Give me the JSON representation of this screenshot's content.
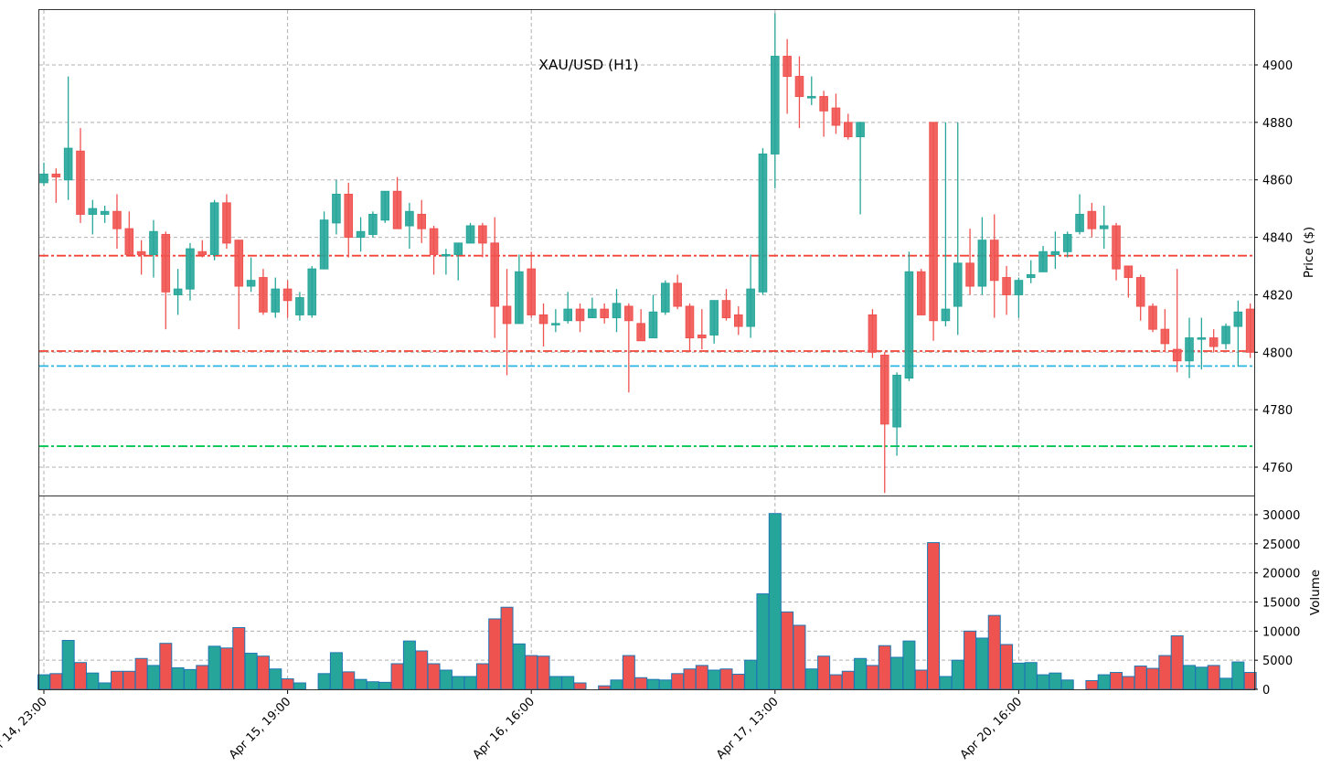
{
  "chart_data": [
    {
      "type": "candlestick",
      "title": "XAU/USD (H1)",
      "ylabel": "Price ($)",
      "ylim": [
        4749,
        4918
      ],
      "yticks": [
        4760,
        4780,
        4800,
        4820,
        4840,
        4860,
        4880,
        4900
      ],
      "grid": true,
      "xtick_labels": [
        "Apr 14, 23:00",
        "Apr 15, 19:00",
        "Apr 16, 16:00",
        "Apr 17, 13:00",
        "Apr 20, 16:00"
      ],
      "xtick_indices": [
        0,
        20,
        40,
        60,
        80
      ],
      "colors": {
        "up": "#26a69a",
        "down": "#ef5350"
      },
      "horizontal_lines": [
        {
          "price": 4833.6,
          "color": "#f44336",
          "style": "dashdot"
        },
        {
          "price": 4800.4,
          "color": "#f44336",
          "style": "dashdot"
        },
        {
          "price": 4795.2,
          "color": "#29b6e6",
          "style": "dashdot"
        },
        {
          "price": 4767.3,
          "color": "#00c853",
          "style": "dashdot"
        }
      ],
      "ohlc": [
        [
          4859,
          4866,
          4858,
          4862
        ],
        [
          4862,
          4864,
          4852,
          4861
        ],
        [
          4860,
          4896,
          4853,
          4871
        ],
        [
          4870,
          4878,
          4845,
          4848
        ],
        [
          4848,
          4853,
          4841,
          4850
        ],
        [
          4848,
          4851,
          4845,
          4849
        ],
        [
          4849,
          4855,
          4836,
          4843
        ],
        [
          4843,
          4849,
          4834,
          4834
        ],
        [
          4835,
          4839,
          4827,
          4834
        ],
        [
          4834,
          4846,
          4826,
          4842
        ],
        [
          4841,
          4842,
          4808,
          4821
        ],
        [
          4820,
          4829,
          4813,
          4822
        ],
        [
          4822,
          4838,
          4818,
          4836
        ],
        [
          4835,
          4839,
          4833,
          4834
        ],
        [
          4834,
          4853,
          4832,
          4852
        ],
        [
          4852,
          4855,
          4836,
          4838
        ],
        [
          4839,
          4839,
          4808,
          4823
        ],
        [
          4823,
          4833,
          4821,
          4825
        ],
        [
          4826,
          4829,
          4813,
          4814
        ],
        [
          4814,
          4826,
          4812,
          4822
        ],
        [
          4822,
          4825,
          4812,
          4818
        ],
        [
          4813,
          4821,
          4811,
          4819
        ],
        [
          4813,
          4830,
          4812,
          4829
        ],
        [
          4829,
          4849,
          4829,
          4846
        ],
        [
          4845,
          4860,
          4841,
          4855
        ],
        [
          4855,
          4859,
          4833,
          4840
        ],
        [
          4840,
          4847,
          4835,
          4842
        ],
        [
          4841,
          4849,
          4840,
          4848
        ],
        [
          4846,
          4856,
          4845,
          4856
        ],
        [
          4856,
          4861,
          4843,
          4843
        ],
        [
          4844,
          4852,
          4836,
          4849
        ],
        [
          4848,
          4853,
          4838,
          4843
        ],
        [
          4843,
          4844,
          4827,
          4834
        ],
        [
          4834,
          4836,
          4827,
          4834
        ],
        [
          4834,
          4838,
          4825,
          4838
        ],
        [
          4838,
          4845,
          4838,
          4844
        ],
        [
          4844,
          4845,
          4833,
          4838
        ],
        [
          4838,
          4847,
          4805,
          4816
        ],
        [
          4816,
          4829,
          4792,
          4810
        ],
        [
          4810,
          4834,
          4810,
          4828
        ],
        [
          4829,
          4835,
          4812,
          4813
        ],
        [
          4813,
          4817,
          4802,
          4810
        ],
        [
          4810,
          4815,
          4807,
          4810
        ],
        [
          4811,
          4821,
          4810,
          4815
        ],
        [
          4815,
          4817,
          4807,
          4811
        ],
        [
          4812,
          4819,
          4812,
          4815
        ],
        [
          4815,
          4817,
          4810,
          4812
        ],
        [
          4812,
          4822,
          4807,
          4817
        ],
        [
          4816,
          4817,
          4786,
          4811
        ],
        [
          4810,
          4815,
          4805,
          4804
        ],
        [
          4805,
          4820,
          4805,
          4814
        ],
        [
          4814,
          4825,
          4813,
          4824
        ],
        [
          4824,
          4827,
          4815,
          4816
        ],
        [
          4816,
          4817,
          4800,
          4805
        ],
        [
          4806,
          4815,
          4801,
          4805
        ],
        [
          4806,
          4818,
          4803,
          4818
        ],
        [
          4818,
          4822,
          4811,
          4812
        ],
        [
          4813,
          4816,
          4806,
          4809
        ],
        [
          4809,
          4834,
          4805,
          4822
        ],
        [
          4821,
          4871,
          4820,
          4869
        ],
        [
          4869,
          4918,
          4857,
          4903
        ],
        [
          4903,
          4909,
          4883,
          4896
        ],
        [
          4896,
          4903,
          4878,
          4889
        ],
        [
          4889,
          4896,
          4886,
          4889
        ],
        [
          4889,
          4891,
          4875,
          4884
        ],
        [
          4885,
          4890,
          4876,
          4879
        ],
        [
          4880,
          4883,
          4874,
          4875
        ],
        [
          4875,
          4880,
          4848,
          4880
        ],
        [
          4813,
          4815,
          4798,
          4800
        ],
        [
          4799,
          4800,
          4751,
          4775
        ],
        [
          4774,
          4793,
          4764,
          4792
        ],
        [
          4791,
          4835,
          4790,
          4828
        ],
        [
          4828,
          4829,
          4813,
          4813
        ],
        [
          4880,
          4880,
          4804,
          4811
        ],
        [
          4811,
          4880,
          4809,
          4815
        ],
        [
          4816,
          4880,
          4806,
          4831
        ],
        [
          4831,
          4843,
          4820,
          4823
        ],
        [
          4823,
          4847,
          4820,
          4839
        ],
        [
          4839,
          4848,
          4812,
          4825
        ],
        [
          4826,
          4830,
          4813,
          4820
        ],
        [
          4820,
          4826,
          4812,
          4825
        ],
        [
          4826,
          4832,
          4824,
          4827
        ],
        [
          4828,
          4837,
          4828,
          4835
        ],
        [
          4834,
          4842,
          4829,
          4835
        ],
        [
          4835,
          4842,
          4833,
          4841
        ],
        [
          4842,
          4855,
          4841,
          4848
        ],
        [
          4849,
          4852,
          4840,
          4843
        ],
        [
          4843,
          4851,
          4836,
          4844
        ],
        [
          4844,
          4845,
          4825,
          4829
        ],
        [
          4830,
          4830,
          4819,
          4826
        ],
        [
          4826,
          4827,
          4811,
          4816
        ],
        [
          4816,
          4817,
          4807,
          4808
        ],
        [
          4808,
          4815,
          4800,
          4803
        ],
        [
          4801,
          4829,
          4793,
          4797
        ],
        [
          4797,
          4812,
          4791,
          4805
        ],
        [
          4805,
          4812,
          4794,
          4805
        ],
        [
          4805,
          4808,
          4800,
          4802
        ],
        [
          4803,
          4810,
          4801,
          4809
        ],
        [
          4809,
          4818,
          4795,
          4814
        ],
        [
          4815,
          4817,
          4798,
          4800
        ]
      ]
    },
    {
      "type": "bar",
      "ylabel": "Volume",
      "ylim": [
        0,
        32800
      ],
      "yticks": [
        0,
        5000,
        10000,
        15000,
        20000,
        25000,
        30000
      ],
      "grid": true,
      "edge_color": "#1f77b4",
      "volumes": [
        2500,
        2700,
        8400,
        4600,
        2800,
        1100,
        3100,
        3100,
        5300,
        4100,
        7900,
        3700,
        3400,
        4100,
        7400,
        7100,
        10600,
        6200,
        5700,
        3500,
        1800,
        1100,
        0,
        2700,
        6300,
        3000,
        1700,
        1300,
        1200,
        4400,
        8300,
        6600,
        4400,
        3300,
        2200,
        2200,
        4400,
        12100,
        14100,
        7800,
        5800,
        5700,
        2200,
        2200,
        1100,
        0,
        600,
        1600,
        5800,
        2000,
        1700,
        1600,
        2700,
        3500,
        4100,
        3300,
        3500,
        2600,
        5000,
        16400,
        30200,
        13300,
        11000,
        3500,
        5700,
        2500,
        3100,
        5300,
        4100,
        7500,
        5500,
        8300,
        3300,
        25200,
        2200,
        5000,
        10000,
        8800,
        12700,
        7700,
        4500,
        4600,
        2500,
        2800,
        1600,
        0,
        1500,
        2500,
        2900,
        2200,
        4000,
        3600,
        5800,
        9200,
        4100,
        3800,
        4100,
        1900,
        4700,
        2900
      ]
    }
  ],
  "chart_title": "XAU/USD (H1)",
  "price_axis_title": "Price ($)",
  "volume_axis_title": "Volume",
  "price_ticks": [
    "4760",
    "4780",
    "4800",
    "4820",
    "4840",
    "4860",
    "4880",
    "4900"
  ],
  "volume_ticks": [
    "0",
    "5000",
    "10000",
    "15000",
    "20000",
    "25000",
    "30000"
  ],
  "x_ticks": [
    "Apr 14, 23:00",
    "Apr 15, 19:00",
    "Apr 16, 16:00",
    "Apr 17, 13:00",
    "Apr 20, 16:00"
  ]
}
